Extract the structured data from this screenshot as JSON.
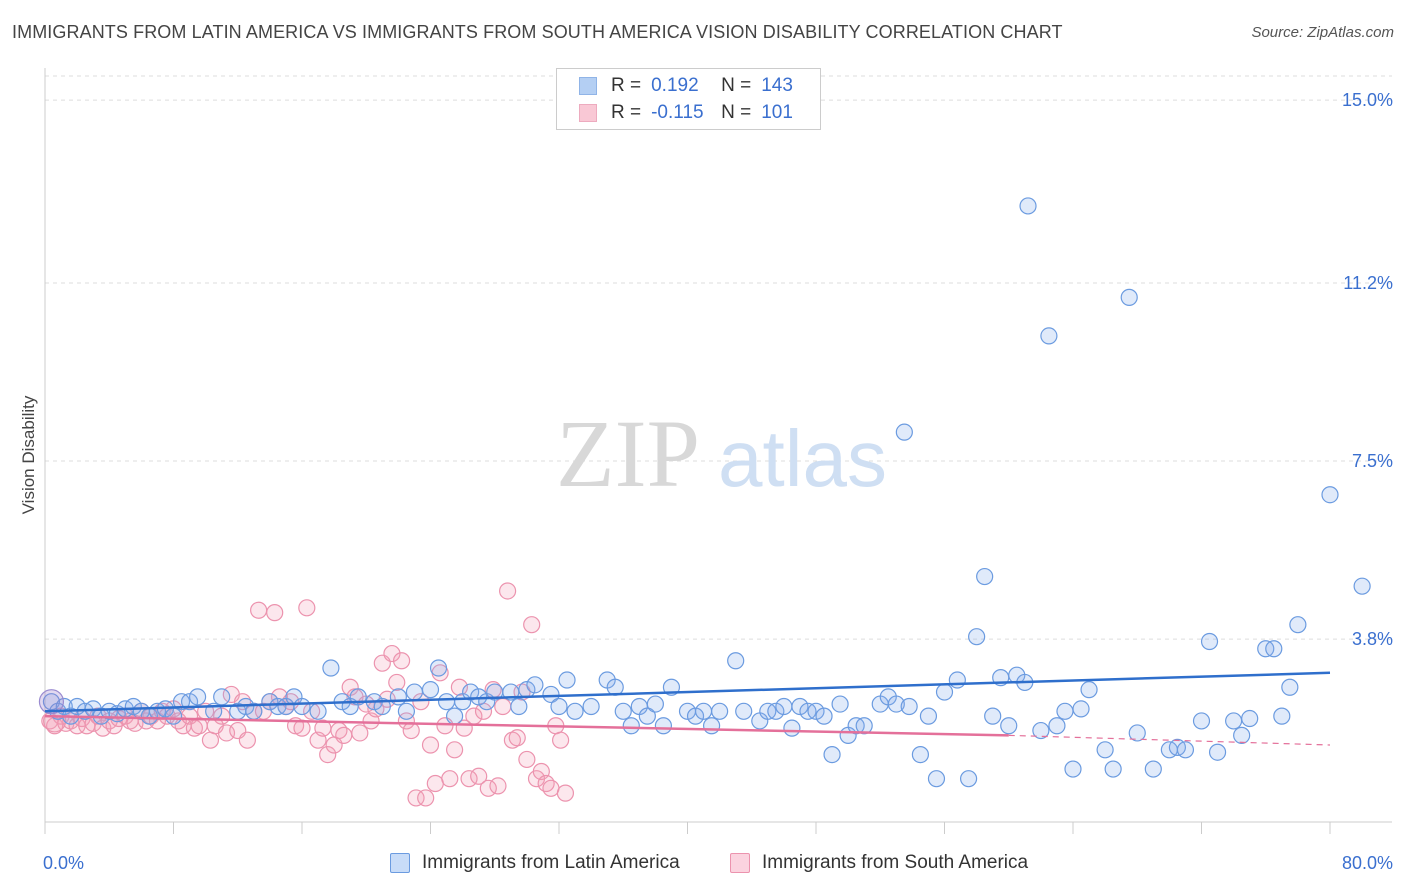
{
  "title": "IMMIGRANTS FROM LATIN AMERICA VS IMMIGRANTS FROM SOUTH AMERICA VISION DISABILITY CORRELATION CHART",
  "source": "Source: ZipAtlas.com",
  "watermark": {
    "zip": "ZIP",
    "atlas": "atlas"
  },
  "legend_top": [
    {
      "r_label": "R =",
      "r_value": "0.192",
      "n_label": "N =",
      "n_value": "143",
      "color": "#9bbff0",
      "border": "#6b9be0"
    },
    {
      "r_label": "R =",
      "r_value": "-0.115",
      "n_label": "N =",
      "n_value": "101",
      "color": "#f7b6c8",
      "border": "#e890aa"
    }
  ],
  "colors": {
    "blue_fill": "rgba(130,170,235,0.25)",
    "blue_stroke": "#6b9be0",
    "blue_line": "#2f6fcc",
    "pink_fill": "rgba(245,160,185,0.25)",
    "pink_stroke": "#ec93ae",
    "pink_line": "#e4709a",
    "axis_label": "#3a6fcf",
    "grid": "#dddddd"
  },
  "chart_data": {
    "type": "scatter",
    "title": "IMMIGRANTS FROM LATIN AMERICA VS IMMIGRANTS FROM SOUTH AMERICA VISION DISABILITY CORRELATION CHART",
    "xlabel": "",
    "ylabel": "Vision Disability",
    "xlim": [
      0,
      80
    ],
    "ylim": [
      0,
      15.5
    ],
    "x_tick_labels": [
      "0.0%",
      "80.0%"
    ],
    "y_ticks": [
      3.8,
      7.5,
      11.2,
      15.0
    ],
    "y_tick_labels": [
      "3.8%",
      "7.5%",
      "11.2%",
      "15.0%"
    ],
    "grid": true,
    "legend_position": "bottom",
    "series": [
      {
        "name": "Immigrants from Latin America",
        "color": "#6b9be0",
        "trend": {
          "x": [
            0,
            80
          ],
          "y": [
            2.3,
            3.1
          ]
        },
        "points": [
          [
            0.4,
            2.5
          ],
          [
            0.8,
            2.3
          ],
          [
            1.2,
            2.4
          ],
          [
            1.6,
            2.2
          ],
          [
            2.0,
            2.4
          ],
          [
            2.5,
            2.3
          ],
          [
            3.0,
            2.35
          ],
          [
            3.5,
            2.2
          ],
          [
            4.0,
            2.3
          ],
          [
            4.5,
            2.25
          ],
          [
            5.0,
            2.35
          ],
          [
            5.5,
            2.4
          ],
          [
            6.0,
            2.3
          ],
          [
            6.5,
            2.2
          ],
          [
            7.0,
            2.3
          ],
          [
            7.5,
            2.35
          ],
          [
            8.0,
            2.2
          ],
          [
            8.5,
            2.5
          ],
          [
            9.0,
            2.5
          ],
          [
            9.5,
            2.6
          ],
          [
            10.5,
            2.3
          ],
          [
            11.0,
            2.6
          ],
          [
            12.0,
            2.3
          ],
          [
            12.5,
            2.4
          ],
          [
            13.0,
            2.3
          ],
          [
            14.0,
            2.5
          ],
          [
            14.5,
            2.4
          ],
          [
            15.0,
            2.4
          ],
          [
            15.5,
            2.6
          ],
          [
            16.0,
            2.4
          ],
          [
            17.0,
            2.3
          ],
          [
            17.8,
            3.2
          ],
          [
            18.5,
            2.5
          ],
          [
            19.0,
            2.4
          ],
          [
            19.5,
            2.6
          ],
          [
            20.5,
            2.5
          ],
          [
            21.0,
            2.4
          ],
          [
            22.0,
            2.6
          ],
          [
            22.5,
            2.3
          ],
          [
            23.0,
            2.7
          ],
          [
            24.0,
            2.75
          ],
          [
            24.5,
            3.2
          ],
          [
            25.0,
            2.5
          ],
          [
            25.5,
            2.2
          ],
          [
            26.0,
            2.5
          ],
          [
            26.5,
            2.7
          ],
          [
            27.0,
            2.6
          ],
          [
            27.5,
            2.5
          ],
          [
            28.0,
            2.7
          ],
          [
            29.0,
            2.7
          ],
          [
            29.5,
            2.4
          ],
          [
            30.0,
            2.75
          ],
          [
            30.5,
            2.85
          ],
          [
            31.5,
            2.65
          ],
          [
            32.0,
            2.4
          ],
          [
            32.5,
            2.95
          ],
          [
            33.0,
            2.3
          ],
          [
            34.0,
            2.4
          ],
          [
            35.0,
            2.95
          ],
          [
            35.5,
            2.8
          ],
          [
            36.0,
            2.3
          ],
          [
            36.5,
            2.0
          ],
          [
            37.0,
            2.4
          ],
          [
            37.5,
            2.2
          ],
          [
            38.0,
            2.45
          ],
          [
            38.5,
            2.0
          ],
          [
            39.0,
            2.8
          ],
          [
            40.0,
            2.3
          ],
          [
            40.5,
            2.2
          ],
          [
            41.0,
            2.3
          ],
          [
            41.5,
            2.0
          ],
          [
            42.0,
            2.3
          ],
          [
            43.0,
            3.35
          ],
          [
            43.5,
            2.3
          ],
          [
            44.5,
            2.1
          ],
          [
            45.0,
            2.3
          ],
          [
            45.5,
            2.3
          ],
          [
            46.0,
            2.4
          ],
          [
            46.5,
            1.95
          ],
          [
            47.0,
            2.4
          ],
          [
            47.5,
            2.3
          ],
          [
            48.0,
            2.3
          ],
          [
            48.5,
            2.2
          ],
          [
            49.0,
            1.4
          ],
          [
            49.5,
            2.45
          ],
          [
            50.0,
            1.8
          ],
          [
            50.5,
            2.0
          ],
          [
            51.0,
            2.0
          ],
          [
            52.0,
            2.45
          ],
          [
            52.5,
            2.6
          ],
          [
            53.0,
            2.45
          ],
          [
            53.5,
            8.1
          ],
          [
            53.8,
            2.4
          ],
          [
            54.5,
            1.4
          ],
          [
            55.0,
            2.2
          ],
          [
            55.5,
            0.9
          ],
          [
            56.0,
            2.7
          ],
          [
            56.8,
            2.95
          ],
          [
            57.5,
            0.9
          ],
          [
            58.0,
            3.85
          ],
          [
            58.5,
            5.1
          ],
          [
            59.0,
            2.2
          ],
          [
            59.5,
            3.0
          ],
          [
            60.0,
            2.0
          ],
          [
            60.5,
            3.05
          ],
          [
            61.0,
            2.9
          ],
          [
            61.2,
            12.8
          ],
          [
            62.0,
            1.9
          ],
          [
            62.5,
            10.1
          ],
          [
            63.0,
            2.0
          ],
          [
            63.5,
            2.3
          ],
          [
            64.0,
            1.1
          ],
          [
            64.5,
            2.35
          ],
          [
            65.0,
            2.75
          ],
          [
            66.0,
            1.5
          ],
          [
            66.5,
            1.1
          ],
          [
            67.5,
            10.9
          ],
          [
            68.0,
            1.85
          ],
          [
            69.0,
            1.1
          ],
          [
            70.0,
            1.5
          ],
          [
            70.5,
            1.55
          ],
          [
            71.0,
            1.5
          ],
          [
            72.0,
            2.1
          ],
          [
            72.5,
            3.75
          ],
          [
            73.0,
            1.45
          ],
          [
            74.0,
            2.1
          ],
          [
            74.5,
            1.8
          ],
          [
            75.0,
            2.15
          ],
          [
            76.0,
            3.6
          ],
          [
            76.5,
            3.6
          ],
          [
            77.0,
            2.2
          ],
          [
            77.5,
            2.8
          ],
          [
            78.0,
            4.1
          ],
          [
            80.0,
            6.8
          ],
          [
            82.0,
            4.9
          ]
        ]
      },
      {
        "name": "Immigrants from South America",
        "color": "#ec93ae",
        "trend": {
          "x": [
            0,
            60
          ],
          "y": [
            2.2,
            1.8
          ]
        },
        "trend_dashed": {
          "x": [
            60,
            80
          ],
          "y": [
            1.8,
            1.6
          ]
        },
        "points": [
          [
            0.3,
            2.1
          ],
          [
            0.6,
            2.0
          ],
          [
            1.0,
            2.2
          ],
          [
            1.3,
            2.05
          ],
          [
            1.6,
            2.1
          ],
          [
            2.0,
            2.0
          ],
          [
            2.3,
            2.15
          ],
          [
            2.6,
            2.0
          ],
          [
            3.0,
            2.05
          ],
          [
            3.3,
            2.2
          ],
          [
            3.6,
            1.95
          ],
          [
            4.0,
            2.1
          ],
          [
            4.3,
            2.0
          ],
          [
            4.6,
            2.15
          ],
          [
            5.0,
            2.2
          ],
          [
            5.3,
            2.1
          ],
          [
            5.6,
            2.05
          ],
          [
            6.0,
            2.3
          ],
          [
            6.3,
            2.1
          ],
          [
            6.6,
            2.2
          ],
          [
            7.0,
            2.1
          ],
          [
            7.3,
            2.3
          ],
          [
            7.6,
            2.2
          ],
          [
            8.0,
            2.35
          ],
          [
            8.3,
            2.1
          ],
          [
            8.6,
            2.0
          ],
          [
            9.0,
            2.2
          ],
          [
            9.3,
            1.95
          ],
          [
            9.6,
            2.0
          ],
          [
            10.0,
            2.3
          ],
          [
            10.3,
            1.7
          ],
          [
            10.6,
            2.0
          ],
          [
            11.0,
            2.2
          ],
          [
            11.3,
            1.85
          ],
          [
            11.6,
            2.65
          ],
          [
            12.0,
            1.9
          ],
          [
            12.3,
            2.5
          ],
          [
            12.6,
            1.7
          ],
          [
            13.0,
            2.3
          ],
          [
            13.3,
            4.4
          ],
          [
            13.6,
            2.3
          ],
          [
            14.0,
            2.5
          ],
          [
            14.3,
            4.35
          ],
          [
            14.6,
            2.6
          ],
          [
            15.0,
            2.4
          ],
          [
            15.3,
            2.5
          ],
          [
            15.6,
            2.0
          ],
          [
            16.0,
            1.95
          ],
          [
            16.3,
            4.45
          ],
          [
            16.6,
            2.3
          ],
          [
            17.0,
            1.7
          ],
          [
            17.3,
            1.95
          ],
          [
            17.6,
            1.4
          ],
          [
            18.0,
            1.6
          ],
          [
            18.3,
            1.9
          ],
          [
            18.6,
            1.8
          ],
          [
            19.0,
            2.8
          ],
          [
            19.3,
            2.6
          ],
          [
            19.6,
            1.85
          ],
          [
            20.0,
            2.45
          ],
          [
            20.3,
            2.1
          ],
          [
            20.6,
            2.35
          ],
          [
            21.0,
            3.3
          ],
          [
            21.3,
            2.55
          ],
          [
            21.6,
            3.5
          ],
          [
            21.9,
            2.9
          ],
          [
            22.2,
            3.35
          ],
          [
            22.5,
            2.1
          ],
          [
            22.8,
            1.9
          ],
          [
            23.1,
            0.5
          ],
          [
            23.4,
            2.5
          ],
          [
            23.7,
            0.5
          ],
          [
            24.0,
            1.6
          ],
          [
            24.3,
            0.8
          ],
          [
            24.6,
            3.1
          ],
          [
            24.9,
            2.0
          ],
          [
            25.2,
            0.9
          ],
          [
            25.5,
            1.5
          ],
          [
            25.8,
            2.8
          ],
          [
            26.1,
            1.95
          ],
          [
            26.4,
            0.9
          ],
          [
            26.7,
            2.2
          ],
          [
            27.0,
            0.95
          ],
          [
            27.3,
            2.3
          ],
          [
            27.6,
            0.7
          ],
          [
            27.9,
            2.75
          ],
          [
            28.2,
            0.75
          ],
          [
            28.5,
            2.4
          ],
          [
            28.8,
            4.8
          ],
          [
            29.1,
            1.7
          ],
          [
            29.4,
            1.75
          ],
          [
            29.7,
            2.7
          ],
          [
            30.0,
            1.3
          ],
          [
            30.3,
            4.1
          ],
          [
            30.6,
            0.9
          ],
          [
            30.9,
            1.05
          ],
          [
            31.2,
            0.8
          ],
          [
            31.5,
            0.7
          ],
          [
            31.8,
            2.0
          ],
          [
            32.1,
            1.7
          ],
          [
            32.4,
            0.6
          ]
        ]
      }
    ]
  },
  "legend_bottom": [
    {
      "label": "Immigrants from Latin America",
      "color": "#c8dcf8",
      "border": "#6b9be0"
    },
    {
      "label": "Immigrants from South America",
      "color": "#fbd3df",
      "border": "#ec93ae"
    }
  ]
}
